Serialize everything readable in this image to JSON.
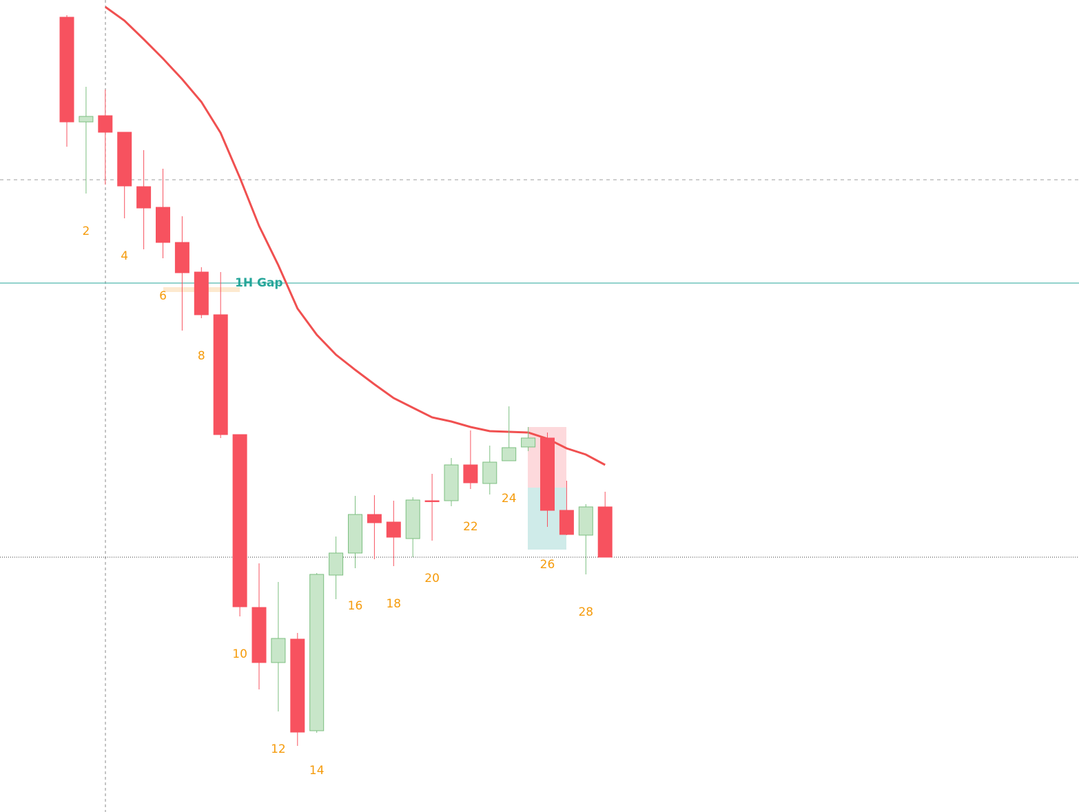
{
  "chart_data": {
    "type": "candlestick",
    "categories": [
      null,
      "2",
      null,
      "4",
      null,
      "6",
      null,
      "8",
      null,
      "10",
      null,
      "12",
      null,
      "14",
      null,
      "16",
      null,
      "18",
      null,
      "20",
      null,
      "22",
      null,
      "24",
      null,
      "26",
      null,
      "28",
      null
    ],
    "open": [
      1154,
      1002,
      1011,
      987,
      908,
      878,
      827,
      784,
      722,
      548,
      297,
      217,
      251,
      118,
      344,
      376,
      432,
      421,
      397,
      452,
      452,
      504,
      477,
      510,
      530,
      543,
      438,
      402,
      443
    ],
    "high": [
      1157,
      1053,
      1049,
      987,
      961,
      934,
      865,
      791,
      784,
      548,
      361,
      334,
      260,
      347,
      400,
      459,
      460,
      452,
      457,
      491,
      514,
      554,
      532,
      589,
      559,
      551,
      481,
      447,
      465
    ],
    "low": [
      966,
      898,
      911,
      862,
      817,
      804,
      699,
      717,
      543,
      284,
      178,
      146,
      96,
      115,
      309,
      354,
      367,
      357,
      370,
      394,
      444,
      469,
      461,
      510,
      524,
      414,
      402,
      345,
      370
    ],
    "close": [
      1002,
      1010,
      987,
      909,
      877,
      827,
      783,
      722,
      548,
      298,
      217,
      252,
      116,
      345,
      376,
      432,
      420,
      399,
      453,
      451,
      504,
      478,
      508,
      529,
      543,
      438,
      403,
      443,
      370
    ],
    "up_color": "#c8e6c9",
    "down_color": "#f7525f",
    "label_color": "#f59b0b",
    "moving_average": {
      "color": "#f05050",
      "values": [
        null,
        null,
        1169,
        1149,
        1122,
        1094,
        1064,
        1031,
        986,
        921,
        851,
        794,
        731,
        693,
        664,
        642,
        621,
        601,
        587,
        573,
        567,
        559,
        553,
        552,
        551,
        542,
        528,
        519,
        504
      ]
    },
    "lines": [
      {
        "value": 918,
        "style": "dashed",
        "color": "#9e9e9e"
      },
      {
        "value": 768,
        "style": "solid",
        "color": "#26a69a",
        "label": "1H Gap"
      },
      {
        "value": 370,
        "style": "dotted",
        "color": "#333333"
      }
    ],
    "gap_zone": [
      755,
      762
    ],
    "position": {
      "stop": 559,
      "entry": 471,
      "target": 381
    },
    "ylim": [
      0,
      1179
    ]
  }
}
